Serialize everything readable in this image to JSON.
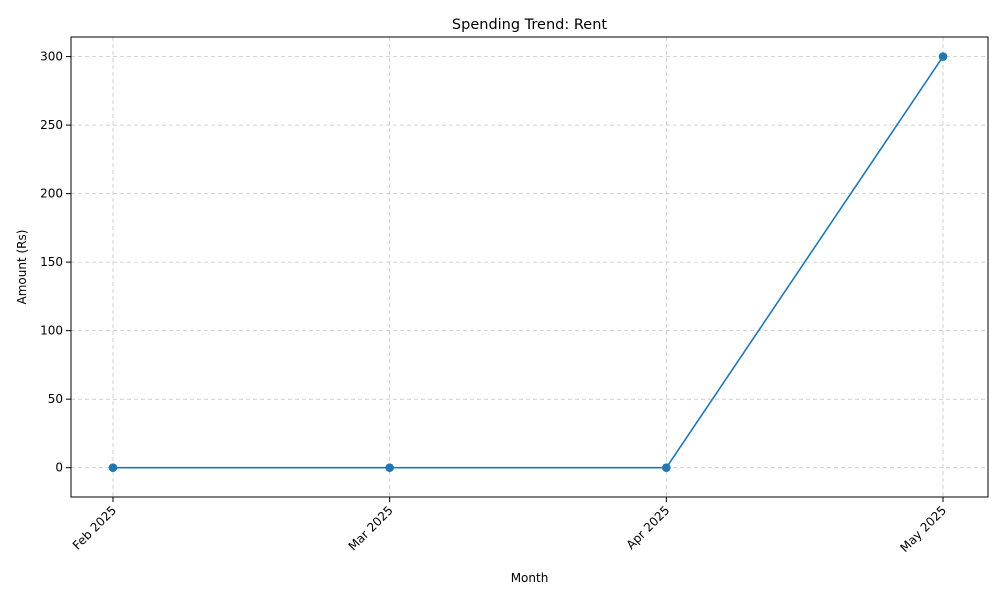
{
  "chart_data": {
    "type": "line",
    "title": "Spending Trend: Rent",
    "xlabel": "Month",
    "ylabel": "Amount (Rs)",
    "categories": [
      "Feb 2025",
      "Mar 2025",
      "Apr 2025",
      "May 2025"
    ],
    "series": [
      {
        "values": [
          0,
          0,
          0,
          300
        ],
        "color": "#1f77b4",
        "marker": "circle"
      }
    ],
    "ylim": [
      -21.4,
      314.3
    ],
    "yticks": [
      0,
      50,
      100,
      150,
      200,
      250,
      300
    ],
    "grid": true,
    "grid_style": "dashed",
    "legend": "none"
  }
}
